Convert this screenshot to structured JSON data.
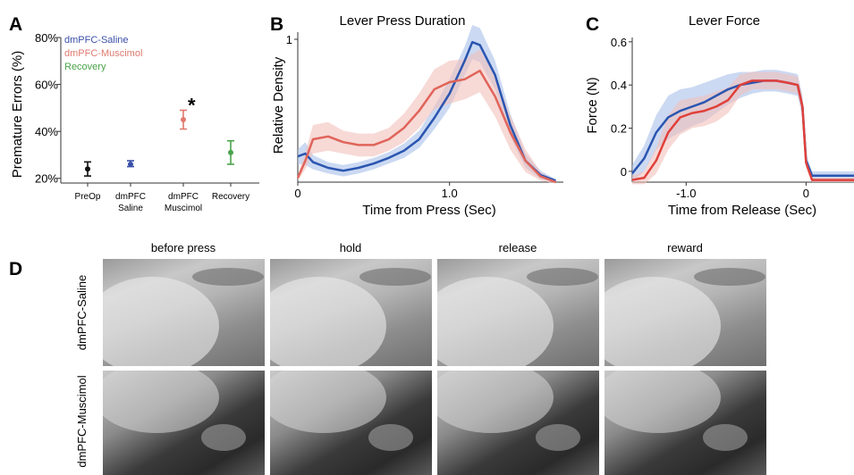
{
  "panels": {
    "a": "A",
    "b": "B",
    "c": "C",
    "d": "D"
  },
  "chart_a": {
    "type": "scatter",
    "ylabel": "Premature Errors (%)",
    "yticks": [
      "20%",
      "40%",
      "60%",
      "80%"
    ],
    "ylim": [
      18,
      80
    ],
    "categories": [
      "PreOp",
      "dmPFC\nSaline",
      "dmPFC\nMuscimol",
      "Recovery"
    ],
    "legend": [
      {
        "name": "dmPFC-Saline",
        "color": "#3a4fa8"
      },
      {
        "name": "dmPFC-Muscimol",
        "color": "#e07a6e"
      },
      {
        "name": "Recovery",
        "color": "#4aa34a"
      }
    ],
    "points": [
      {
        "x": "PreOp",
        "y": 24,
        "lo": 21,
        "hi": 27,
        "color": "#111111"
      },
      {
        "x": "dmPFC\nSaline",
        "y": 26,
        "lo": 25,
        "hi": 27.5,
        "color": "#3a4fa8"
      },
      {
        "x": "dmPFC\nMuscimol",
        "y": 45,
        "lo": 41,
        "hi": 49,
        "color": "#e07a6e"
      },
      {
        "x": "Recovery",
        "y": 31,
        "lo": 26,
        "hi": 36,
        "color": "#4aa34a"
      }
    ],
    "annotation": "*"
  },
  "chart_b": {
    "type": "line",
    "title": "Lever Press Duration",
    "xlabel": "Time from Press (Sec)",
    "ylabel": "Relative Density",
    "xticks": [
      "0",
      "1.0"
    ],
    "ytick": "1",
    "xlim": [
      0,
      1.75
    ],
    "ylim": [
      0,
      1.05
    ],
    "series": [
      {
        "color": "#2a55b0",
        "band": "#a9c0ea",
        "x": [
          0,
          0.05,
          0.1,
          0.2,
          0.3,
          0.4,
          0.5,
          0.6,
          0.7,
          0.8,
          0.9,
          1.0,
          1.1,
          1.15,
          1.2,
          1.3,
          1.4,
          1.5,
          1.6,
          1.7
        ],
        "y": [
          0.18,
          0.2,
          0.14,
          0.1,
          0.08,
          0.1,
          0.13,
          0.17,
          0.22,
          0.3,
          0.45,
          0.62,
          0.85,
          0.98,
          0.96,
          0.75,
          0.4,
          0.15,
          0.05,
          0.01
        ],
        "err": [
          0.05,
          0.08,
          0.05,
          0.04,
          0.04,
          0.04,
          0.04,
          0.04,
          0.05,
          0.06,
          0.08,
          0.1,
          0.1,
          0.12,
          0.12,
          0.1,
          0.08,
          0.05,
          0.03,
          0.01
        ]
      },
      {
        "color": "#e0645a",
        "band": "#f2c0bb",
        "x": [
          0,
          0.05,
          0.1,
          0.2,
          0.3,
          0.4,
          0.5,
          0.6,
          0.7,
          0.8,
          0.9,
          1.0,
          1.1,
          1.2,
          1.3,
          1.4,
          1.5,
          1.6,
          1.7
        ],
        "y": [
          0.03,
          0.15,
          0.3,
          0.32,
          0.28,
          0.26,
          0.26,
          0.3,
          0.38,
          0.5,
          0.65,
          0.7,
          0.72,
          0.78,
          0.6,
          0.35,
          0.15,
          0.04,
          0.0
        ],
        "err": [
          0.02,
          0.06,
          0.1,
          0.1,
          0.08,
          0.08,
          0.08,
          0.08,
          0.1,
          0.12,
          0.14,
          0.15,
          0.14,
          0.15,
          0.14,
          0.12,
          0.08,
          0.03,
          0.01
        ]
      }
    ]
  },
  "chart_c": {
    "type": "line",
    "title": "Lever Force",
    "xlabel": "Time from Release (Sec)",
    "ylabel": "Force (N)",
    "xticks": [
      "-1.0",
      "0"
    ],
    "yticks": [
      "0",
      "0.2",
      "0.4",
      "0.6"
    ],
    "xlim": [
      -1.45,
      0.4
    ],
    "ylim": [
      -0.05,
      0.62
    ],
    "series": [
      {
        "color": "#2a55b0",
        "band": "#a9c0ea",
        "x": [
          -1.45,
          -1.35,
          -1.25,
          -1.15,
          -1.05,
          -0.95,
          -0.85,
          -0.75,
          -0.65,
          -0.55,
          -0.45,
          -0.35,
          -0.25,
          -0.15,
          -0.07,
          -0.03,
          0.0,
          0.05,
          0.2,
          0.4
        ],
        "y": [
          -0.01,
          0.06,
          0.18,
          0.25,
          0.28,
          0.3,
          0.32,
          0.35,
          0.38,
          0.4,
          0.41,
          0.42,
          0.42,
          0.41,
          0.4,
          0.3,
          0.05,
          -0.02,
          -0.02,
          -0.02
        ],
        "err": [
          0.04,
          0.06,
          0.08,
          0.1,
          0.1,
          0.09,
          0.09,
          0.08,
          0.07,
          0.06,
          0.05,
          0.05,
          0.05,
          0.05,
          0.05,
          0.05,
          0.03,
          0.02,
          0.02,
          0.02
        ]
      },
      {
        "color": "#e0403a",
        "band": "#f2c0bb",
        "x": [
          -1.45,
          -1.35,
          -1.25,
          -1.15,
          -1.05,
          -0.95,
          -0.85,
          -0.75,
          -0.65,
          -0.55,
          -0.45,
          -0.35,
          -0.25,
          -0.15,
          -0.07,
          -0.03,
          0.0,
          0.05,
          0.2,
          0.4
        ],
        "y": [
          -0.04,
          -0.03,
          0.05,
          0.18,
          0.25,
          0.27,
          0.28,
          0.3,
          0.33,
          0.4,
          0.42,
          0.42,
          0.42,
          0.41,
          0.4,
          0.3,
          0.04,
          -0.04,
          -0.04,
          -0.04
        ],
        "err": [
          0.02,
          0.03,
          0.06,
          0.08,
          0.08,
          0.07,
          0.07,
          0.07,
          0.06,
          0.05,
          0.04,
          0.04,
          0.04,
          0.04,
          0.04,
          0.04,
          0.02,
          0.01,
          0.01,
          0.01
        ]
      }
    ]
  },
  "frames": {
    "columns": [
      "before press",
      "hold",
      "release",
      "reward"
    ],
    "rows": [
      "dmPFC-Saline",
      "dmPFC-Muscimol"
    ]
  }
}
